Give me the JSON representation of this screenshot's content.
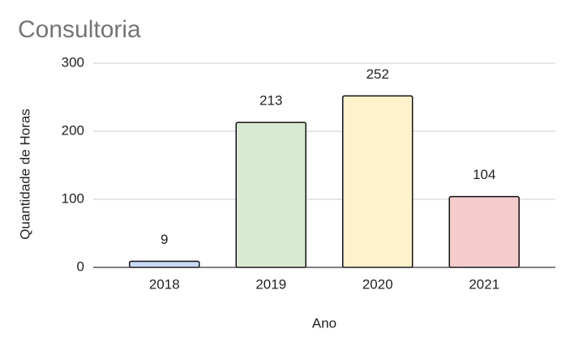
{
  "chart_data": {
    "type": "bar",
    "title": "Consultoria",
    "x_label": "Ano",
    "y_label": "Quantidade de Horas",
    "categories": [
      "2018",
      "2019",
      "2020",
      "2021"
    ],
    "values": [
      9,
      213,
      252,
      104
    ],
    "colors": [
      "#c9daf8",
      "#d9ead3",
      "#fff2cc",
      "#f4cccc"
    ],
    "ylim": [
      0,
      300
    ],
    "yticks": [
      0,
      100,
      200,
      300
    ],
    "grid": true
  }
}
